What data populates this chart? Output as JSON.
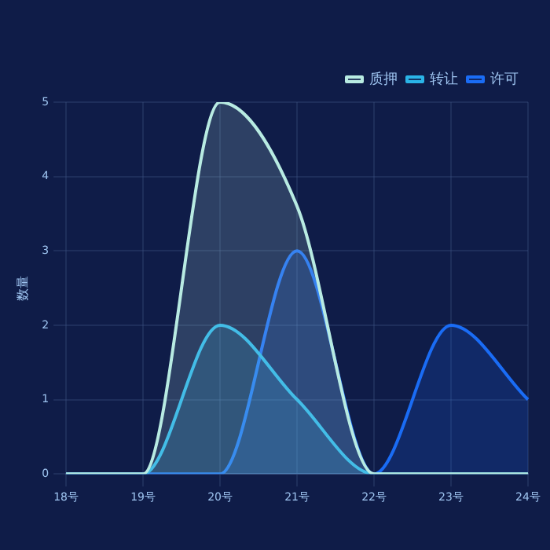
{
  "chart_data": {
    "type": "area",
    "ylabel": "数量",
    "categories": [
      "18号",
      "19号",
      "20号",
      "21号",
      "22号",
      "23号",
      "24号"
    ],
    "series": [
      {
        "name": "质押",
        "color": "#b8ebe2",
        "values": [
          0,
          0,
          5,
          3.6,
          0,
          0,
          0
        ]
      },
      {
        "name": "转让",
        "color": "#2ab4e8",
        "values": [
          0,
          0,
          2,
          1,
          0,
          0,
          0
        ]
      },
      {
        "name": "许可",
        "color": "#1a6cf5",
        "values": [
          0,
          0,
          0,
          3,
          0,
          2,
          1
        ]
      }
    ],
    "ylim": [
      0,
      5
    ],
    "yticks": [
      0,
      1,
      2,
      3,
      4,
      5
    ],
    "grid": true,
    "legend": "top right",
    "marker": "none",
    "line_style": "solid"
  }
}
